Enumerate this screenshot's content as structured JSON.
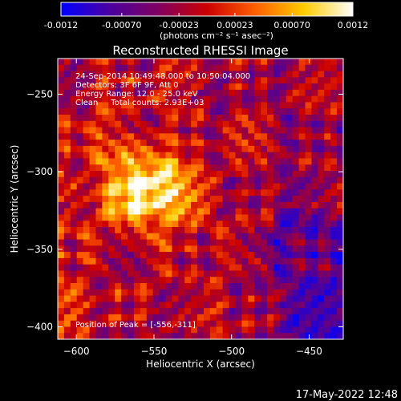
{
  "colorbar": {
    "tick_labels": [
      "-0.0012",
      "-0.00070",
      "-0.00023",
      "0.00023",
      "0.00070",
      "0.0012"
    ],
    "tick_values": [
      -0.0012,
      -0.0007,
      -0.00023,
      0.00023,
      0.0007,
      0.0012
    ],
    "range": [
      -0.0012,
      0.0012
    ],
    "units_label": "(photons cm⁻² s⁻¹ asec⁻²)",
    "colormap": [
      "#0000ff",
      "#4b00a0",
      "#800060",
      "#cc0000",
      "#ff6000",
      "#ffcc00",
      "#ffffff"
    ]
  },
  "footer": {
    "date": "17-May-2022 12:48"
  },
  "chart_data": {
    "type": "heatmap",
    "title": "Reconstructed RHESSI Image",
    "xlabel": "Heliocentric X (arcsec)",
    "ylabel": "Heliocentric Y (arcsec)",
    "xlim": [
      -612,
      -428
    ],
    "ylim": [
      -408,
      -227
    ],
    "xticks": [
      -600,
      -550,
      -500,
      -450
    ],
    "xtick_labels": [
      "−600",
      "−550",
      "−500",
      "−450"
    ],
    "yticks": [
      -250,
      -300,
      -350,
      -400
    ],
    "ytick_labels": [
      "−250",
      "−300",
      "−350",
      "−400"
    ],
    "annotations": [
      "24-Sep-2014 10:49:48.000 to 10:50:04.000",
      "Detectors: 3F 6F 9F, Att 0",
      "Energy Range: 12.0 - 25.0 keV",
      "Clean     Total counts: 2.93E+03"
    ],
    "peak_label": "Position of Peak = [-556,-311]",
    "peak": [
      -556,
      -311
    ]
  }
}
